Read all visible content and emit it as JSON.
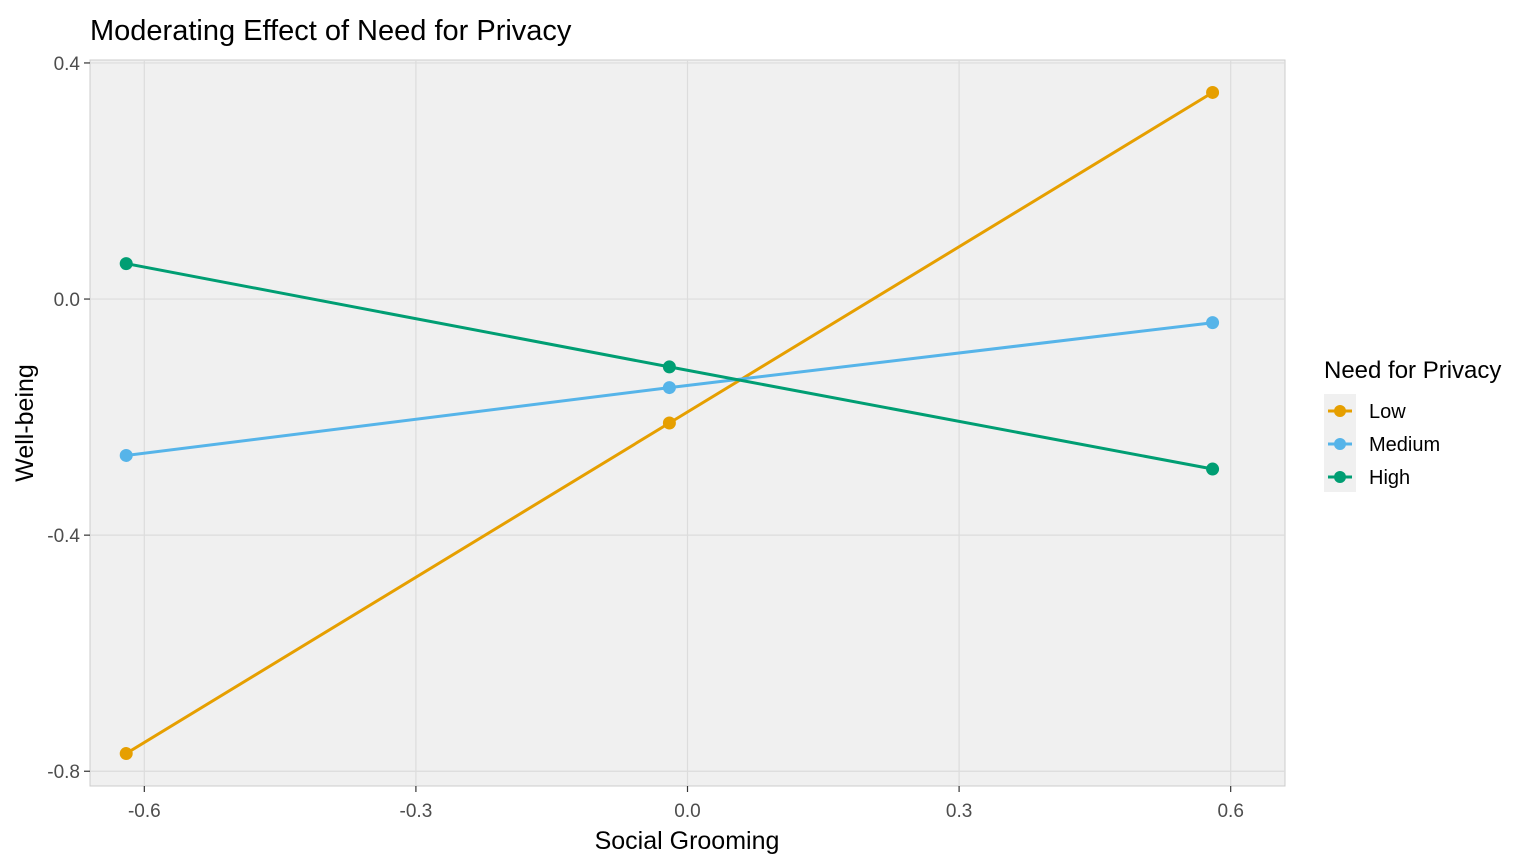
{
  "chart_data": {
    "type": "line",
    "title": "Moderating Effect of Need for Privacy",
    "xlabel": "Social Grooming",
    "ylabel": "Well-being",
    "xlim": [
      -0.66,
      0.66
    ],
    "ylim": [
      -0.825,
      0.405
    ],
    "x_ticks": [
      -0.6,
      -0.3,
      0.0,
      0.3,
      0.6
    ],
    "x_tick_labels": [
      "-0.6",
      "-0.3",
      "0.0",
      "0.3",
      "0.6"
    ],
    "y_ticks": [
      -0.8,
      -0.4,
      0.0,
      0.4
    ],
    "y_tick_labels": [
      "-0.8",
      "-0.4",
      "0.0",
      "0.4"
    ],
    "grid": true,
    "legend": {
      "title": "Need for Privacy",
      "placement": "right"
    },
    "panel_background": "#f0f0f0",
    "grid_color": "#dcdcdc",
    "series": [
      {
        "name": "Low",
        "color": "#E69F00",
        "points": [
          {
            "x": -0.62,
            "y": -0.77
          },
          {
            "x": -0.02,
            "y": -0.21
          },
          {
            "x": 0.58,
            "y": 0.35
          }
        ]
      },
      {
        "name": "Medium",
        "color": "#56B4E9",
        "points": [
          {
            "x": -0.62,
            "y": -0.265
          },
          {
            "x": -0.02,
            "y": -0.15
          },
          {
            "x": 0.58,
            "y": -0.04
          }
        ]
      },
      {
        "name": "High",
        "color": "#009E73",
        "points": [
          {
            "x": -0.62,
            "y": 0.06
          },
          {
            "x": -0.02,
            "y": -0.115
          },
          {
            "x": 0.58,
            "y": -0.288
          }
        ]
      }
    ]
  }
}
